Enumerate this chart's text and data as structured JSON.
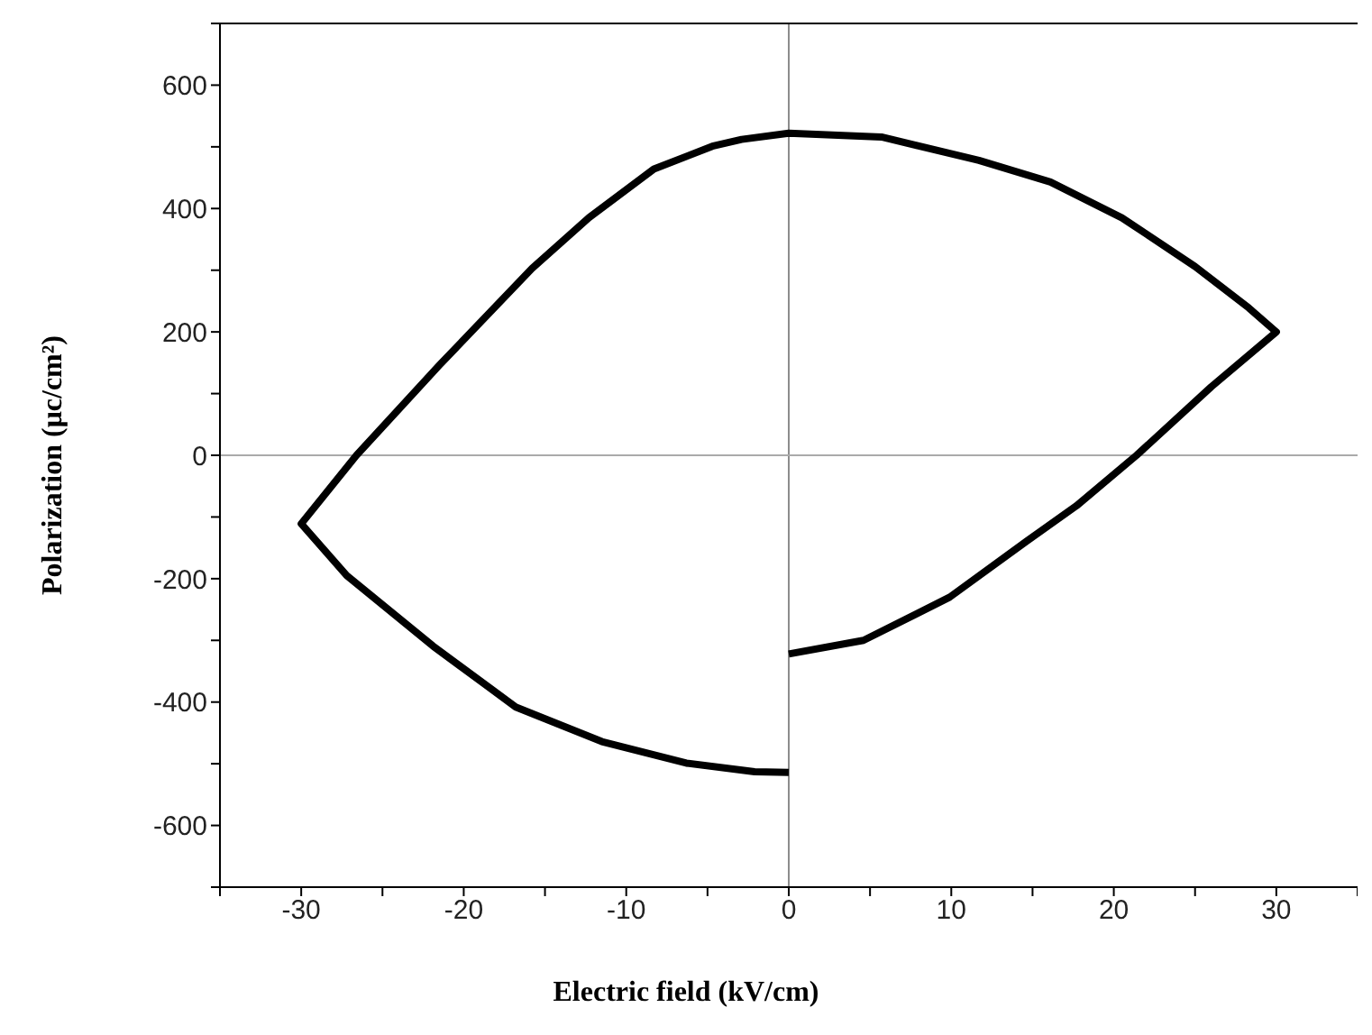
{
  "chart_data": {
    "type": "line",
    "xlabel": "Electric field (kV/cm)",
    "ylabel": "Polarization (μc/cm²)",
    "xlim": [
      -35,
      35
    ],
    "ylim": [
      -700,
      700
    ],
    "xticks": [
      {
        "value": -35,
        "label": null
      },
      -30,
      {
        "value": -25,
        "label": null
      },
      -20,
      {
        "value": -15,
        "label": null
      },
      -10,
      {
        "value": -5,
        "label": null
      },
      0,
      {
        "value": 5,
        "label": null
      },
      10,
      {
        "value": 15,
        "label": null
      },
      20,
      {
        "value": 25,
        "label": null
      },
      30,
      {
        "value": 35,
        "label": null
      }
    ],
    "yticks": [
      {
        "value": -700,
        "label": null
      },
      -600,
      {
        "value": -500,
        "label": null
      },
      -400,
      {
        "value": -300,
        "label": null
      },
      -200,
      {
        "value": -100,
        "label": null
      },
      0,
      {
        "value": 100,
        "label": null
      },
      200,
      {
        "value": 300,
        "label": null
      },
      400,
      {
        "value": 500,
        "label": null
      },
      600,
      {
        "value": 700,
        "label": null
      }
    ],
    "marker": "none",
    "line_style": "solid",
    "ref_lines": [
      {
        "axis": "x",
        "value": 0,
        "color": "#8c8c8c"
      },
      {
        "axis": "y",
        "value": 0,
        "color": "#aaaaaa"
      }
    ],
    "series": [
      {
        "color": "#000000",
        "x": [
          0,
          4.6,
          9.9,
          14.6,
          17.7,
          21.4,
          26,
          30,
          28.3,
          25,
          20.5,
          16.1,
          11.7,
          5.7,
          0,
          -2.9,
          -4.7,
          -8.3,
          -12.3,
          -15.8,
          -21.5,
          -26.6,
          -30,
          -27.2,
          -21.9,
          -16.8,
          -11.5,
          -6.3,
          -2.1,
          0
        ],
        "values": [
          -322,
          -300,
          -230,
          -140,
          -82,
          0,
          111,
          200,
          239,
          306,
          385,
          443,
          478,
          516,
          522,
          512,
          501,
          464,
          385,
          303,
          146,
          0,
          -111,
          -195,
          -309,
          -408,
          -464,
          -499,
          -513,
          -514
        ]
      }
    ]
  }
}
